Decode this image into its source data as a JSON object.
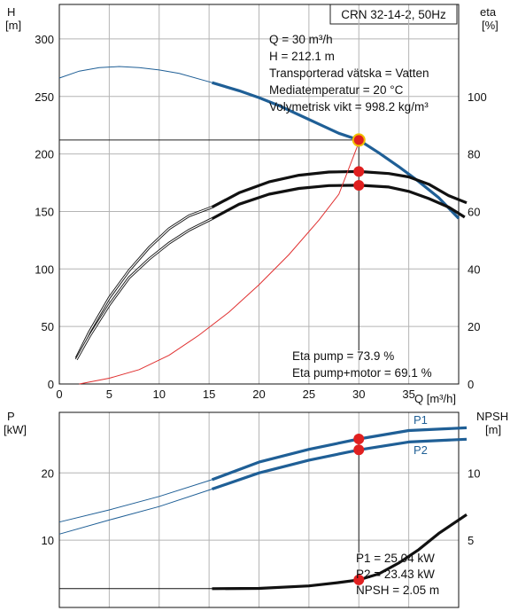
{
  "title": "CRN 32-14-2, 50Hz",
  "colors": {
    "blue": "#1f5f96",
    "red": "#e02020",
    "black": "#111111",
    "eta_red": "#e03030",
    "marker_ring": "#f0c000"
  },
  "chart_data": [
    {
      "type": "line",
      "panel": "top",
      "xlabel": "Q [m³/h]",
      "ylabel_left": [
        "H",
        "[m]"
      ],
      "ylabel_right": [
        "eta",
        "[%]"
      ],
      "xlim": [
        0,
        40
      ],
      "ylim_left": [
        0,
        330
      ],
      "ylim_right": [
        0,
        132
      ],
      "x_ticks": [
        0,
        5,
        10,
        15,
        20,
        25,
        30,
        35
      ],
      "y_ticks_left": [
        0,
        50,
        100,
        150,
        200,
        250,
        300
      ],
      "y_ticks_right": [
        0,
        20,
        40,
        60,
        80,
        100
      ],
      "grid": true,
      "operating_point": {
        "Q": 30,
        "H": 212.1
      },
      "info_lines": [
        "Q = 30 m³/h",
        "H = 212.1 m",
        "Transporterad vätska = Vatten",
        "Mediatemperatur = 20 °C",
        "Volymetrisk vikt = 998.2 kg/m³"
      ],
      "eta_lines": [
        "Eta pump = 73.9 %",
        "Eta pump+motor = 69.1 %"
      ],
      "series": [
        {
          "axis": "left",
          "color": "blue",
          "role": "H",
          "thin": [
            [
              0,
              266
            ],
            [
              2,
              272
            ],
            [
              4,
              275
            ],
            [
              6,
              276
            ],
            [
              8,
              275
            ],
            [
              10,
              273
            ],
            [
              12,
              270
            ],
            [
              15.3,
              262
            ]
          ],
          "thick": [
            [
              15.3,
              262
            ],
            [
              18,
              255
            ],
            [
              20,
              249
            ],
            [
              22,
              242
            ],
            [
              24,
              234
            ],
            [
              26,
              226
            ],
            [
              28,
              218
            ],
            [
              30,
              212.1
            ],
            [
              32,
              201
            ],
            [
              34,
              189
            ],
            [
              36,
              176
            ],
            [
              38,
              162
            ],
            [
              40,
              144
            ]
          ]
        },
        {
          "axis": "right",
          "color": "black",
          "role": "eta pump",
          "thin": [
            [
              1.7,
              9
            ],
            [
              3,
              18
            ],
            [
              5,
              30
            ],
            [
              7,
              39.5
            ],
            [
              9,
              47.5
            ],
            [
              11,
              54
            ],
            [
              13,
              58.5
            ],
            [
              15.3,
              61.5
            ]
          ],
          "thick": [
            [
              15.3,
              61.5
            ],
            [
              18,
              66.5
            ],
            [
              21,
              70.3
            ],
            [
              24,
              72.6
            ],
            [
              27,
              73.7
            ],
            [
              30,
              73.9
            ],
            [
              33,
              73.2
            ],
            [
              35,
              72
            ],
            [
              37,
              69.5
            ],
            [
              39,
              65.5
            ],
            [
              40.8,
              63
            ]
          ]
        },
        {
          "axis": "right",
          "color": "black",
          "role": "eta pump+motor",
          "thin": [
            [
              1.7,
              8.5
            ],
            [
              3,
              16.5
            ],
            [
              5,
              27.5
            ],
            [
              7,
              37
            ],
            [
              9,
              43.5
            ],
            [
              11,
              49
            ],
            [
              13,
              53.5
            ],
            [
              15.3,
              57.5
            ]
          ],
          "thick": [
            [
              15.3,
              57.5
            ],
            [
              18,
              62.5
            ],
            [
              21,
              66
            ],
            [
              24,
              68
            ],
            [
              27,
              69
            ],
            [
              30,
              69.1
            ],
            [
              33,
              68.5
            ],
            [
              35,
              67
            ],
            [
              37,
              64.5
            ],
            [
              39,
              61.5
            ],
            [
              40.6,
              58
            ]
          ]
        },
        {
          "axis": "right",
          "color": "eta_red",
          "role": "eta red",
          "thin": [
            [
              2,
              0
            ],
            [
              5,
              2
            ],
            [
              8,
              5
            ],
            [
              11,
              10
            ],
            [
              14,
              17
            ],
            [
              17,
              25
            ],
            [
              20,
              34.5
            ],
            [
              23,
              45
            ],
            [
              26,
              57
            ],
            [
              28,
              66
            ],
            [
              30,
              84
            ]
          ]
        }
      ],
      "markers": [
        {
          "axis": "left",
          "x": 30,
          "y": 212.1,
          "ring": true
        },
        {
          "axis": "right",
          "x": 30,
          "y": 73.9
        },
        {
          "axis": "right",
          "x": 30,
          "y": 69.1
        }
      ]
    },
    {
      "type": "line",
      "panel": "bottom",
      "ylabel_left": [
        "P",
        "[kW]"
      ],
      "ylabel_right": [
        "NPSH",
        "[m]"
      ],
      "xlim": [
        0,
        40
      ],
      "ylim_left": [
        0,
        29
      ],
      "ylim_right": [
        0,
        14.5
      ],
      "y_ticks_left": [
        10,
        20
      ],
      "y_ticks_right": [
        5,
        10
      ],
      "grid": true,
      "readout_lines": [
        "P1 = 25.04 kW",
        "P2 = 23.43 kW",
        "NPSH = 2.05 m"
      ],
      "series": [
        {
          "axis": "left",
          "color": "blue",
          "role": "P1",
          "name": "P1",
          "thin": [
            [
              0,
              12.7
            ],
            [
              5,
              14.5
            ],
            [
              10,
              16.5
            ],
            [
              15.3,
              19.0
            ]
          ],
          "thick": [
            [
              15.3,
              19.0
            ],
            [
              20,
              21.6
            ],
            [
              25,
              23.5
            ],
            [
              30,
              25.04
            ],
            [
              35,
              26.3
            ],
            [
              40.8,
              26.7
            ]
          ]
        },
        {
          "axis": "left",
          "color": "blue",
          "role": "P2",
          "name": "P2",
          "thin": [
            [
              0,
              10.9
            ],
            [
              5,
              13.0
            ],
            [
              10,
              15.0
            ],
            [
              15.3,
              17.6
            ]
          ],
          "thick": [
            [
              15.3,
              17.6
            ],
            [
              20,
              20.0
            ],
            [
              25,
              21.9
            ],
            [
              30,
              23.43
            ],
            [
              35,
              24.6
            ],
            [
              40.8,
              25.0
            ]
          ]
        },
        {
          "axis": "right",
          "color": "black",
          "role": "NPSH",
          "thin": [
            [
              0,
              1.4
            ],
            [
              15.3,
              1.4
            ]
          ],
          "thick": [
            [
              15.3,
              1.4
            ],
            [
              20,
              1.42
            ],
            [
              25,
              1.6
            ],
            [
              28,
              1.85
            ],
            [
              30,
              2.05
            ],
            [
              32,
              2.5
            ],
            [
              34,
              3.3
            ],
            [
              36,
              4.3
            ],
            [
              38,
              5.5
            ],
            [
              40.8,
              6.9
            ]
          ]
        }
      ],
      "markers": [
        {
          "axis": "left",
          "x": 30,
          "y": 25.04
        },
        {
          "axis": "left",
          "x": 30,
          "y": 23.43
        },
        {
          "axis": "right",
          "x": 30,
          "y": 2.05
        }
      ]
    }
  ]
}
